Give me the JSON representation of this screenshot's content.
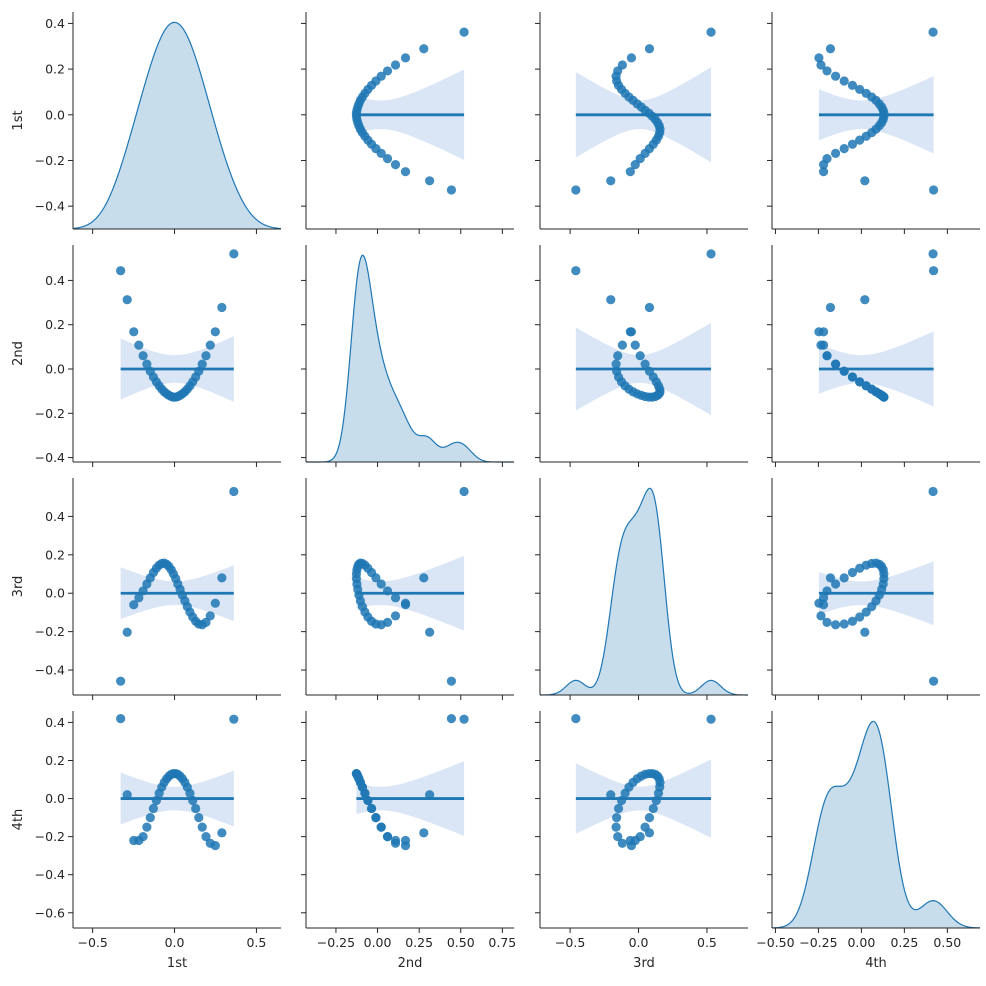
{
  "chart_data": {
    "type": "scatter",
    "variables": [
      "1st",
      "2nd",
      "3rd",
      "4th"
    ],
    "colors": {
      "accent": "#1f77b4",
      "band": "#aec7e8"
    },
    "axes": {
      "1st": {
        "lim": [
          -0.5,
          0.45
        ],
        "ticks": [
          -0.4,
          -0.2,
          0.0,
          0.2,
          0.4
        ],
        "tick_labels": [
          "−0.4",
          "−0.2",
          "0.0",
          "0.2",
          "0.4"
        ]
      },
      "2nd": {
        "lim": [
          -0.42,
          0.56
        ],
        "ticks": [
          -0.4,
          -0.2,
          0.0,
          0.2,
          0.4
        ],
        "tick_labels": [
          "−0.4",
          "−0.2",
          "0.0",
          "0.2",
          "0.4"
        ]
      },
      "3rd": {
        "lim": [
          -0.53,
          0.6
        ],
        "ticks": [
          -0.4,
          -0.2,
          0.0,
          0.2,
          0.4
        ],
        "tick_labels": [
          "−0.4",
          "−0.2",
          "0.0",
          "0.2",
          "0.4"
        ]
      },
      "4th": {
        "lim": [
          -0.68,
          0.46
        ],
        "ticks": [
          -0.6,
          -0.4,
          -0.2,
          0.0,
          0.2,
          0.4
        ],
        "tick_labels": [
          "−0.6",
          "−0.4",
          "−0.2",
          "0.0",
          "0.2",
          "0.4"
        ]
      }
    },
    "x_axes": {
      "1st": {
        "lim": [
          -0.62,
          0.65
        ],
        "ticks": [
          -0.5,
          0.0,
          0.5
        ],
        "tick_labels": [
          "−0.5",
          "0.0",
          "0.5"
        ]
      },
      "2nd": {
        "lim": [
          -0.43,
          0.82
        ],
        "ticks": [
          -0.25,
          0.0,
          0.25,
          0.5,
          0.75
        ],
        "tick_labels": [
          "−0.25",
          "0.00",
          "0.25",
          "0.50",
          "0.75"
        ]
      },
      "3rd": {
        "lim": [
          -0.72,
          0.8
        ],
        "ticks": [
          -0.5,
          0.0,
          0.5
        ],
        "tick_labels": [
          "−0.5",
          "0.0",
          "0.5"
        ]
      },
      "4th": {
        "lim": [
          -0.52,
          0.69
        ],
        "ticks": [
          -0.5,
          -0.25,
          0.0,
          0.25,
          0.5
        ],
        "tick_labels": [
          "−0.50",
          "−0.25",
          "0.00",
          "0.25",
          "0.50"
        ]
      }
    },
    "points": {
      "1st": [
        0.362,
        0.289,
        0.249,
        0.218,
        0.192,
        0.169,
        0.148,
        0.129,
        0.111,
        0.094,
        0.078,
        0.063,
        0.048,
        0.034,
        0.02,
        0.007,
        -0.007,
        -0.02,
        -0.034,
        -0.048,
        -0.063,
        -0.078,
        -0.094,
        -0.111,
        -0.129,
        -0.148,
        -0.169,
        -0.192,
        -0.218,
        -0.249,
        -0.289,
        -0.329
      ],
      "2nd": [
        0.52,
        0.278,
        0.168,
        0.108,
        0.06,
        0.022,
        -0.01,
        -0.036,
        -0.058,
        -0.076,
        -0.091,
        -0.103,
        -0.112,
        -0.119,
        -0.124,
        -0.127,
        -0.127,
        -0.124,
        -0.119,
        -0.112,
        -0.103,
        -0.091,
        -0.076,
        -0.058,
        -0.036,
        -0.01,
        0.022,
        0.06,
        0.108,
        0.168,
        0.313,
        0.444
      ],
      "3rd": [
        0.53,
        0.08,
        -0.052,
        -0.118,
        -0.152,
        -0.164,
        -0.16,
        -0.146,
        -0.124,
        -0.098,
        -0.07,
        -0.04,
        -0.01,
        0.02,
        0.048,
        0.076,
        0.101,
        0.122,
        0.139,
        0.151,
        0.157,
        0.155,
        0.146,
        0.13,
        0.108,
        0.08,
        0.048,
        0.012,
        -0.024,
        -0.06,
        -0.203,
        -0.458
      ],
      "4th": [
        0.417,
        -0.18,
        -0.247,
        -0.235,
        -0.2,
        -0.15,
        -0.1,
        -0.052,
        -0.01,
        0.028,
        0.06,
        0.085,
        0.104,
        0.118,
        0.127,
        0.131,
        0.131,
        0.127,
        0.118,
        0.104,
        0.085,
        0.06,
        0.028,
        -0.01,
        -0.052,
        -0.1,
        -0.15,
        -0.2,
        -0.22,
        -0.22,
        0.02,
        0.42
      ]
    },
    "regression": {
      "slope": 0.0,
      "intercept": 0.0,
      "confidence_band": true
    },
    "diagonal": "kde",
    "kde_bandwidth": {
      "1st": 0.11,
      "2nd": 0.055,
      "3rd": 0.07,
      "4th": 0.08
    },
    "grid": false,
    "legend": "none"
  }
}
